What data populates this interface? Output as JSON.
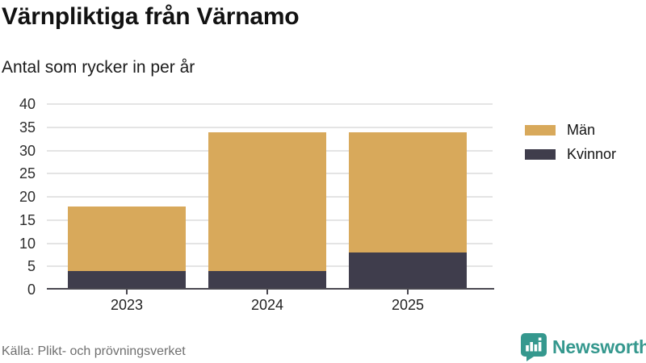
{
  "header": {
    "title": "Värnpliktiga från Värnamo",
    "subtitle": "Antal som rycker in per år"
  },
  "chart_data": {
    "type": "bar",
    "stacked": true,
    "title": "Värnpliktiga från Värnamo",
    "subtitle": "Antal som rycker in per år",
    "categories": [
      "2023",
      "2024",
      "2025"
    ],
    "series": [
      {
        "name": "Män",
        "color": "#d8a95b",
        "values": [
          14,
          30,
          26
        ]
      },
      {
        "name": "Kvinnor",
        "color": "#3f3d4c",
        "values": [
          4,
          4,
          8
        ]
      }
    ],
    "stack_bottom_to_top": [
      "Kvinnor",
      "Män"
    ],
    "totals": [
      18,
      34,
      34
    ],
    "xlabel": "",
    "ylabel": "",
    "ylim": [
      0,
      40
    ],
    "yticks": [
      0,
      5,
      10,
      15,
      20,
      25,
      30,
      35,
      40
    ],
    "grid": true,
    "legend_position": "right"
  },
  "footer": {
    "source": "Källa: Plikt- och prövningsverket",
    "brand": "Newsworthy"
  },
  "colors": {
    "men": "#d8a95b",
    "women": "#3f3d4c",
    "brand_teal": "#35988e",
    "grid": "#e4e4e4",
    "axis": "#4a4850"
  }
}
